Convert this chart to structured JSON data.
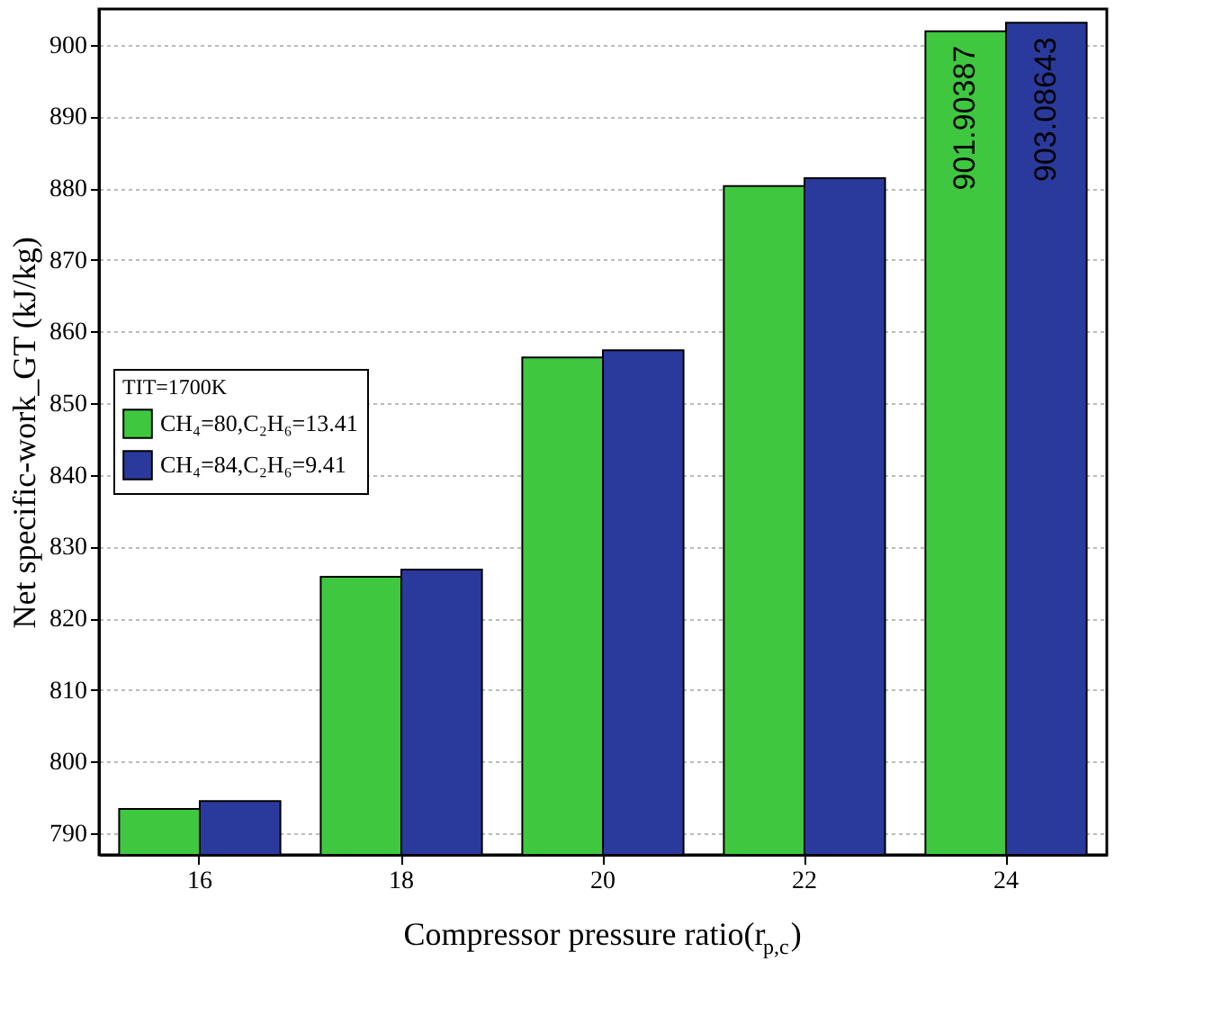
{
  "chart_data": {
    "type": "bar",
    "xlabel": "Compressor pressure ratio(r$_{p,c}$)",
    "ylabel": "Net specific-work_GT (kJ/kg)",
    "legend_title": "TIT=1700K",
    "legend": "left",
    "categories": [
      "16",
      "18",
      "20",
      "22",
      "24"
    ],
    "series": [
      {
        "name": "CH₄=80,C₂H₆=13.41",
        "color": "#3fc83f",
        "values": [
          793.4,
          825.8,
          856.4,
          880.3,
          901.90387
        ],
        "value_labels": [
          null,
          null,
          null,
          null,
          "901.90387"
        ]
      },
      {
        "name": "CH₄=84,C₂H₆=9.41",
        "color": "#2a3a9c",
        "values": [
          794.5,
          826.8,
          857.4,
          881.4,
          903.08643
        ],
        "value_labels": [
          null,
          null,
          null,
          null,
          "903.08643"
        ]
      }
    ],
    "ylim": [
      787,
      905
    ],
    "yticks": [
      790,
      800,
      810,
      820,
      830,
      840,
      850,
      860,
      870,
      880,
      890,
      900
    ],
    "grid": "y"
  }
}
